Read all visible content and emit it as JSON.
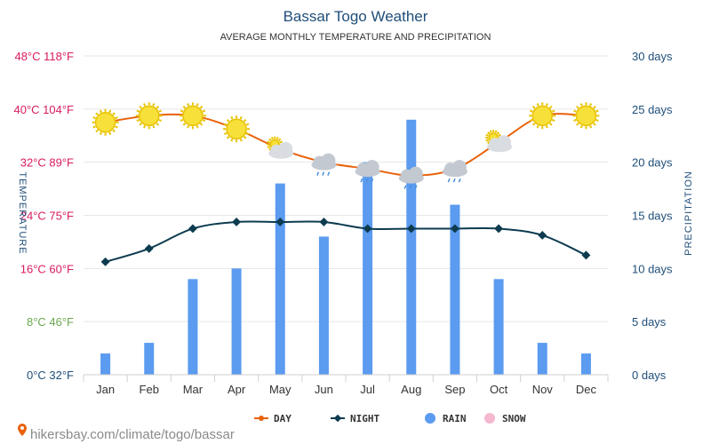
{
  "page": {
    "title": "Bassar Togo Weather",
    "subtitle": "AVERAGE MONTHLY TEMPERATURE AND PRECIPITATION",
    "source": "hikersbay.com/climate/togo/bassar"
  },
  "chart_data": {
    "type": "line+bar",
    "categories": [
      "Jan",
      "Feb",
      "Mar",
      "Apr",
      "May",
      "Jun",
      "Jul",
      "Aug",
      "Sep",
      "Oct",
      "Nov",
      "Dec"
    ],
    "series": [
      {
        "name": "DAY",
        "axis": "temperature",
        "unit": "°C",
        "color": "#e8620c",
        "values": [
          38,
          39,
          39,
          37,
          34,
          32,
          31,
          30,
          31,
          35,
          39,
          39
        ]
      },
      {
        "name": "NIGHT",
        "axis": "temperature",
        "unit": "°C",
        "color": "#0d3b4f",
        "values": [
          17,
          19,
          22,
          23,
          23,
          23,
          22,
          22,
          22,
          22,
          21,
          18
        ]
      },
      {
        "name": "RAIN",
        "axis": "precipitation",
        "unit": "days",
        "color": "#5b9bf0",
        "values": [
          2,
          3,
          9,
          10,
          18,
          13,
          20,
          24,
          16,
          9,
          3,
          2
        ]
      },
      {
        "name": "SNOW",
        "axis": "precipitation",
        "unit": "days",
        "color": "#f5b8d0",
        "values": [
          0,
          0,
          0,
          0,
          0,
          0,
          0,
          0,
          0,
          0,
          0,
          0
        ]
      }
    ],
    "weather_icons": [
      "sun",
      "sun",
      "sun",
      "sun",
      "partly-cloudy",
      "rain-cloud",
      "rain-cloud",
      "rain-cloud",
      "rain-cloud",
      "partly-cloudy",
      "sun",
      "sun"
    ],
    "temperature_axis": {
      "label": "TEMPERATURE",
      "ylim": [
        0,
        48
      ],
      "ticks": [
        {
          "value": 0,
          "label": "0°C 32°F",
          "color": "#1f4e79"
        },
        {
          "value": 8,
          "label": "8°C 46°F",
          "color": "#6aa84f"
        },
        {
          "value": 16,
          "label": "16°C 60°F",
          "color": "#d81b60"
        },
        {
          "value": 24,
          "label": "24°C 75°F",
          "color": "#d81b60"
        },
        {
          "value": 32,
          "label": "32°C 89°F",
          "color": "#d81b60"
        },
        {
          "value": 40,
          "label": "40°C 104°F",
          "color": "#d81b60"
        },
        {
          "value": 48,
          "label": "48°C 118°F",
          "color": "#d81b60"
        }
      ]
    },
    "precipitation_axis": {
      "label": "PRECIPITATION",
      "ylim": [
        0,
        30
      ],
      "ticks": [
        {
          "value": 0,
          "label": "0 days"
        },
        {
          "value": 5,
          "label": "5 days"
        },
        {
          "value": 10,
          "label": "10 days"
        },
        {
          "value": 15,
          "label": "15 days"
        },
        {
          "value": 20,
          "label": "20 days"
        },
        {
          "value": 25,
          "label": "25 days"
        },
        {
          "value": 30,
          "label": "30 days"
        }
      ]
    },
    "legend": {
      "position": "bottom",
      "items": [
        {
          "label": "DAY",
          "color": "#e8620c"
        },
        {
          "label": "NIGHT",
          "color": "#0d3b4f"
        },
        {
          "label": "RAIN",
          "color": "#5b9bf0"
        },
        {
          "label": "SNOW",
          "color": "#f5b8d0"
        }
      ]
    },
    "grid": true
  }
}
